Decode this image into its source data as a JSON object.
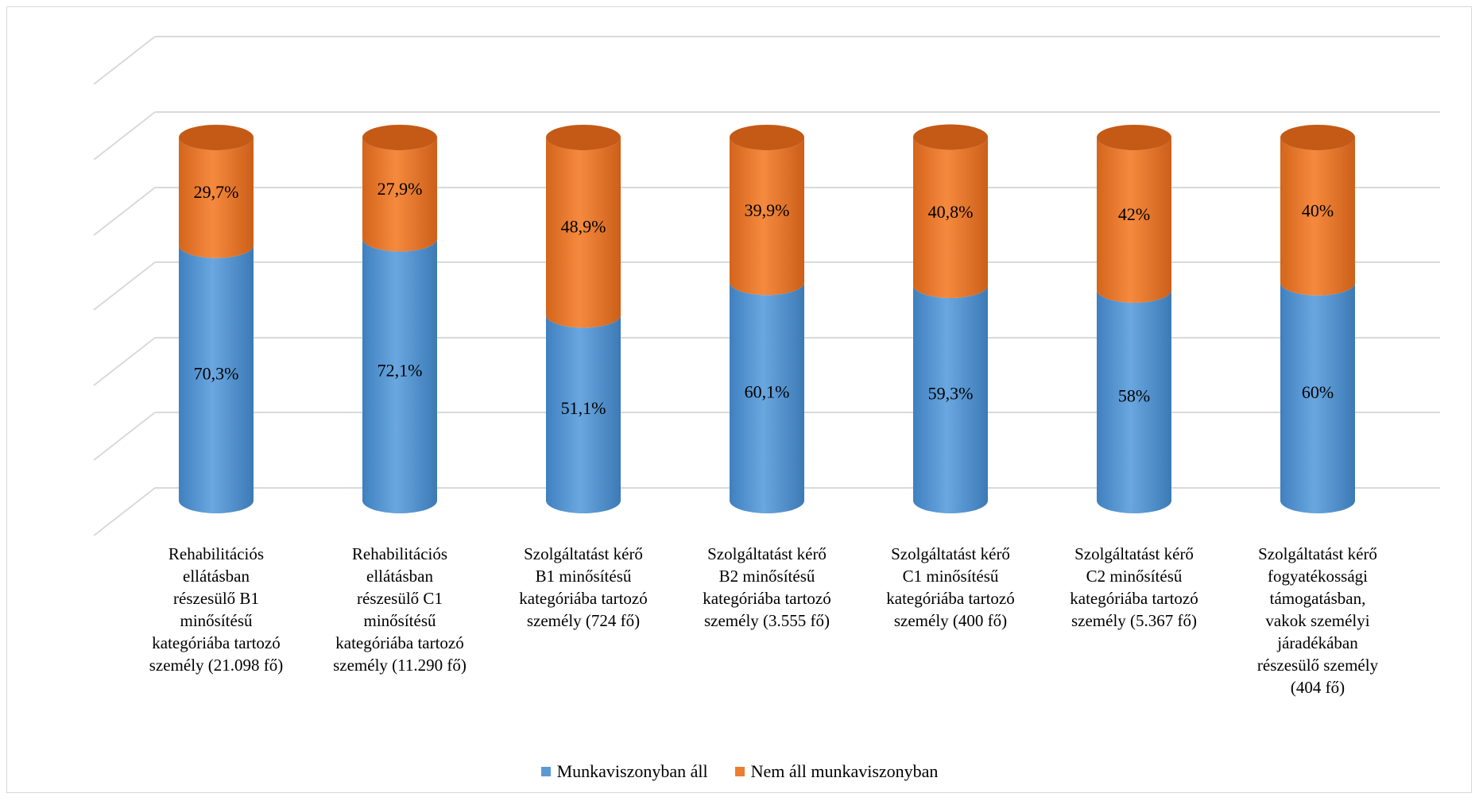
{
  "chart_data": {
    "type": "bar",
    "stacked": true,
    "percent_stacked": true,
    "style": "3d-cylinder",
    "categories": [
      "Rehabilitációs\nellátásban\nrészesülő B1\nminősítésű\nkategóriába tartozó\nszemély (21.098 fő)",
      "Rehabilitációs\nellátásban\nrészesülő C1\nminősítésű\nkategóriába tartozó\nszemély (11.290 fő)",
      "Szolgáltatást kérő\nB1 minősítésű\nkategóriába tartozó\nszemély (724 fő)",
      "Szolgáltatást kérő\nB2 minősítésű\nkategóriába tartozó\nszemély (3.555 fő)",
      "Szolgáltatást kérő\nC1 minősítésű\nkategóriába tartozó\nszemély (400 fő)",
      "Szolgáltatást kérő\nC2 minősítésű\nkategóriába tartozó\nszemély (5.367 fő)",
      "Szolgáltatást kérő\nfogyatékossági\ntámogatásban,\nvakok személyi\njáradékában\nrészesülő személy\n(404 fő)"
    ],
    "series": [
      {
        "name": "Munkaviszonyban áll",
        "color": "#5b9bd5",
        "values": [
          70.3,
          72.1,
          51.1,
          60.1,
          59.3,
          58,
          60
        ],
        "labels": [
          "70,3%",
          "72,1%",
          "51,1%",
          "60,1%",
          "59,3%",
          "58%",
          "60%"
        ]
      },
      {
        "name": "Nem áll munkaviszonyban",
        "color": "#ed7d31",
        "values": [
          29.7,
          27.9,
          48.9,
          39.9,
          40.8,
          42,
          40
        ],
        "labels": [
          "29,7%",
          "27,9%",
          "48,9%",
          "39,9%",
          "40,8%",
          "42%",
          "40%"
        ]
      }
    ],
    "ylim": [
      0,
      100
    ],
    "grid": true,
    "legend": "bottom",
    "title": "",
    "xlabel": "",
    "ylabel": ""
  }
}
